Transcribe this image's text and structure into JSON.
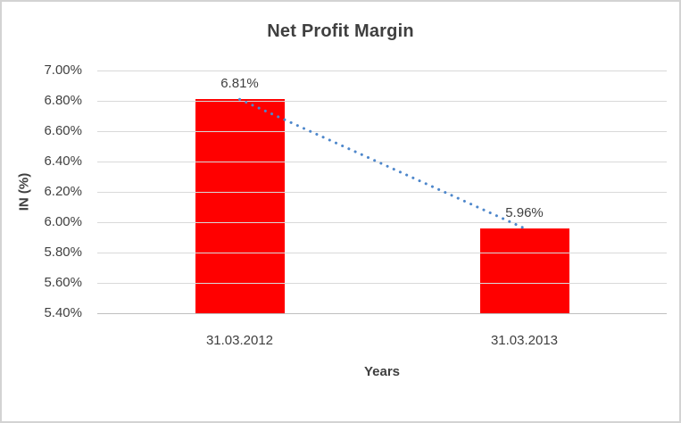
{
  "frame": {
    "background": "#ffffff",
    "border_color": "#d3d3d3"
  },
  "chart_data": {
    "type": "bar",
    "title": "Net Profit Margin",
    "xlabel": "Years",
    "ylabel": "IN (%)",
    "categories": [
      "31.03.2012",
      "31.03.2013"
    ],
    "values": [
      6.81,
      5.96
    ],
    "data_labels": [
      "6.81%",
      "5.96%"
    ],
    "ylim": [
      5.4,
      7.0
    ],
    "ytick_step": 0.2,
    "ytick_labels": [
      "7.00%",
      "6.80%",
      "6.60%",
      "6.40%",
      "6.20%",
      "6.00%",
      "5.80%",
      "5.60%",
      "5.40%"
    ],
    "grid": true,
    "legend": "none",
    "bar_color": "#ff0000",
    "text_color": "#404040",
    "title_color": "#3f3f3f",
    "gridline_color": "#d9d9d9",
    "axisline_color": "#bfbfbf",
    "trendline": {
      "type": "linear",
      "style": "dotted",
      "color": "#4e87cb",
      "points": [
        6.81,
        5.96
      ]
    }
  }
}
